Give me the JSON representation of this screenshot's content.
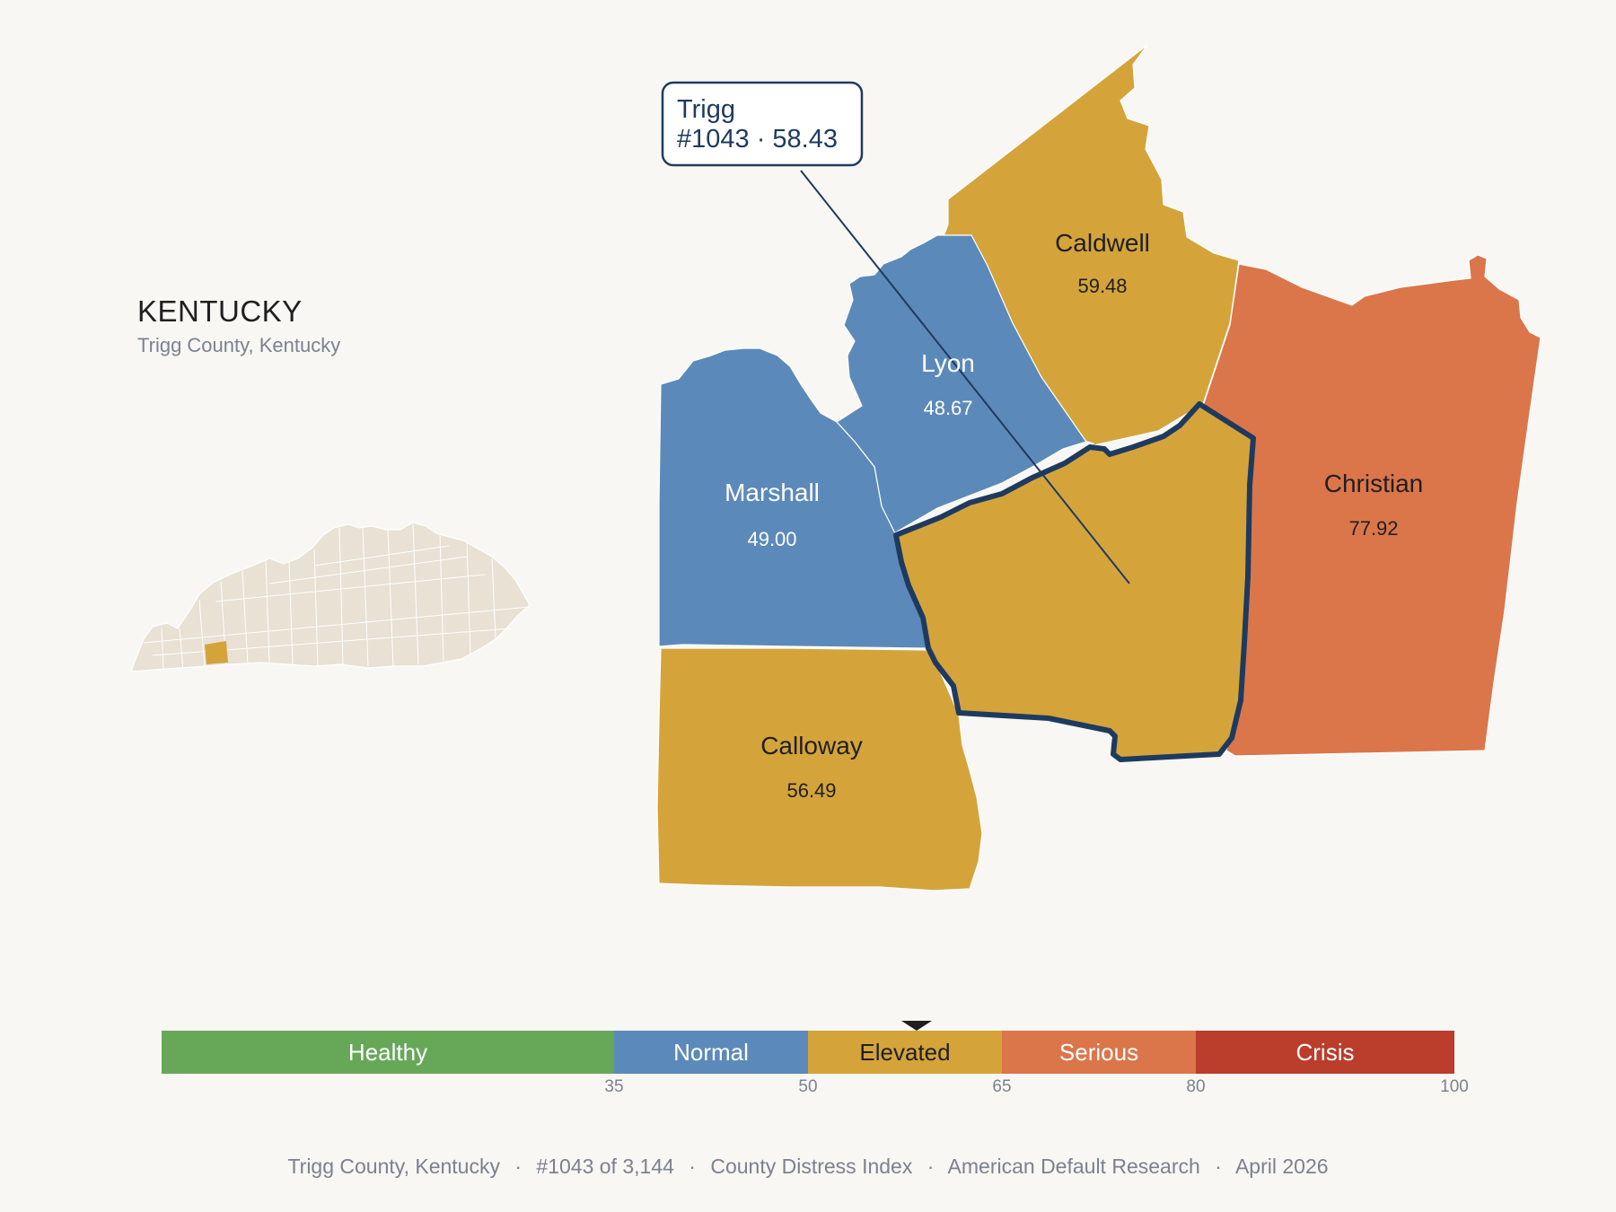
{
  "header": {
    "state": "KENTUCKY",
    "subtitle": "Trigg County, Kentucky"
  },
  "colors": {
    "background": "#f9f7f3",
    "healthy": "#67a858",
    "normal": "#5b8aba",
    "elevated": "#d4a43b",
    "serious": "#db764a",
    "crisis": "#bb3d2c",
    "highlight_outline": "#1e3a5f",
    "inset_county": "#e8e1d4"
  },
  "callout": {
    "name": "Trigg",
    "detail": "#1043 · 58.43"
  },
  "counties": [
    {
      "name": "Caldwell",
      "value": "59.48",
      "category": "Elevated"
    },
    {
      "name": "Lyon",
      "value": "48.67",
      "category": "Normal"
    },
    {
      "name": "Marshall",
      "value": "49.00",
      "category": "Normal"
    },
    {
      "name": "Christian",
      "value": "77.92",
      "category": "Serious"
    },
    {
      "name": "Calloway",
      "value": "56.49",
      "category": "Elevated"
    },
    {
      "name": "Trigg",
      "value": "58.43",
      "category": "Elevated",
      "highlighted": true
    }
  ],
  "scale": {
    "segments": [
      {
        "label": "Healthy",
        "from": 0,
        "to": 35
      },
      {
        "label": "Normal",
        "from": 35,
        "to": 50
      },
      {
        "label": "Elevated",
        "from": 50,
        "to": 65
      },
      {
        "label": "Serious",
        "from": 65,
        "to": 80
      },
      {
        "label": "Crisis",
        "from": 80,
        "to": 100
      }
    ],
    "ticks": [
      "35",
      "50",
      "65",
      "80",
      "100"
    ],
    "marker_value": 58.43
  },
  "footer": {
    "county": "Trigg County, Kentucky",
    "rank": "#1043 of 3,144",
    "index": "County Distress Index",
    "source": "American Default Research",
    "date": "April 2026",
    "separator": "·"
  }
}
